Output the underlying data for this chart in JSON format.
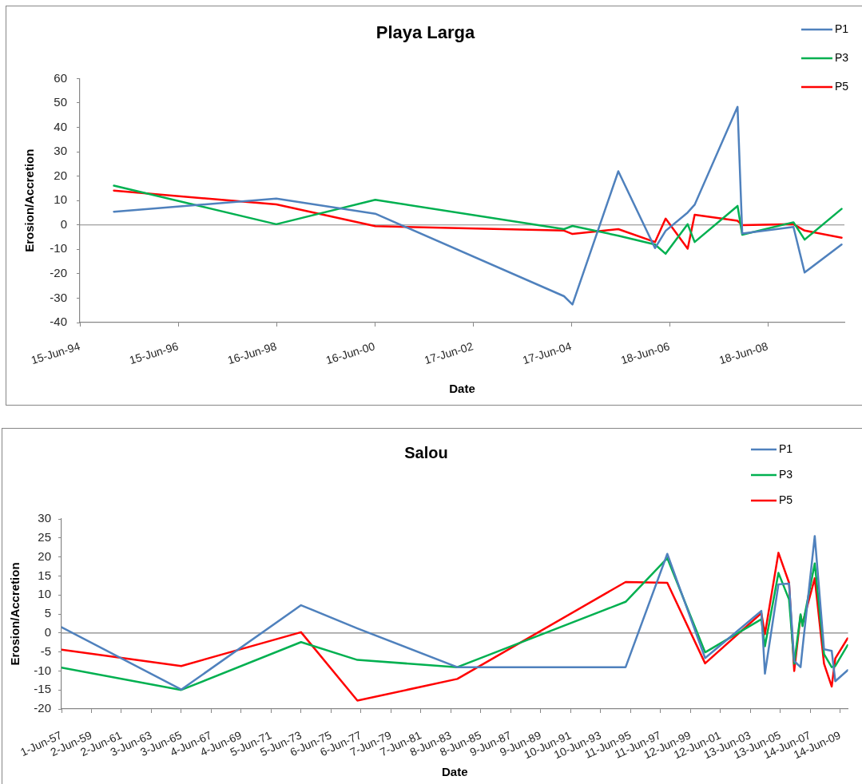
{
  "chart_data": [
    {
      "type": "line",
      "title": "Playa Larga",
      "xlabel": "Date",
      "ylabel": "Erosion/Accretion",
      "x": [
        "1995-02-23",
        "1998-06-15",
        "2000-06-20",
        "2004-04-24",
        "2004-06-26",
        "2005-06-02",
        "2006-03-02",
        "2006-05-20",
        "2006-10-31",
        "2006-12-22",
        "2007-11-06",
        "2007-12-11",
        "2008-12-26",
        "2009-03-19",
        "2009-12-19"
      ],
      "xlim": [
        "1994-06-15",
        "2010-01-09"
      ],
      "xticks": [
        {
          "value": "1994-06-15",
          "label": "15-Jun-94"
        },
        {
          "value": "1996-06-15",
          "label": "15-Jun-96"
        },
        {
          "value": "1998-06-16",
          "label": "16-Jun-98"
        },
        {
          "value": "2000-06-16",
          "label": "16-Jun-00"
        },
        {
          "value": "2002-06-17",
          "label": "17-Jun-02"
        },
        {
          "value": "2004-06-17",
          "label": "17-Jun-04"
        },
        {
          "value": "2006-06-18",
          "label": "18-Jun-06"
        },
        {
          "value": "2008-06-18",
          "label": "18-Jun-08"
        }
      ],
      "ylim": [
        -40,
        60
      ],
      "yticks": [
        -40,
        -30,
        -20,
        -10,
        0,
        10,
        20,
        30,
        40,
        50,
        60
      ],
      "series": [
        {
          "name": "P1",
          "color": "#4f81bd",
          "values": [
            5.4,
            10.8,
            4.6,
            -29.2,
            -32.6,
            22.0,
            -9.5,
            -2.4,
            5.1,
            8.3,
            48.4,
            -3.5,
            -0.8,
            -19.5,
            -8.0
          ]
        },
        {
          "name": "P3",
          "color": "#00b050",
          "values": [
            16.1,
            0.3,
            10.3,
            -1.7,
            -0.4,
            -4.4,
            -8.0,
            -11.8,
            0.3,
            -7.0,
            7.8,
            -4.0,
            1.1,
            -6.0,
            6.6
          ]
        },
        {
          "name": "P5",
          "color": "#ff0000",
          "values": [
            14.1,
            8.4,
            -0.5,
            -2.3,
            -3.7,
            -1.7,
            -7.0,
            2.6,
            -9.7,
            4.2,
            1.7,
            -0.1,
            0.3,
            -2.3,
            -5.2
          ]
        }
      ],
      "ref_lines": [
        {
          "axis": "y",
          "value": 0,
          "color": "#868686"
        }
      ],
      "grid": false,
      "legend": "top right",
      "marker": "none"
    },
    {
      "type": "line",
      "title": "Salou",
      "xlabel": "Date",
      "ylabel": "Erosion/Accretion",
      "x": [
        "1957-06-01",
        "1965-06-01",
        "1973-06-03",
        "1977-03-10",
        "1983-11-12",
        "1995-02-10",
        "1997-11-23",
        "2000-06-03",
        "2004-03-07",
        "2004-06-02",
        "2005-04-28",
        "2006-01-12",
        "2006-05-18",
        "2006-10-20",
        "2006-12-06",
        "2007-10-01",
        "2008-05-15",
        "2008-11-18",
        "2009-02-14",
        "2009-12-12"
      ],
      "xlim": [
        "1957-06-01",
        "2009-12-22"
      ],
      "xticks": [
        {
          "value": "1957-06-01",
          "label": "1-Jun-57"
        },
        {
          "value": "1959-06-02",
          "label": "2-Jun-59"
        },
        {
          "value": "1961-06-02",
          "label": "2-Jun-61"
        },
        {
          "value": "1963-06-03",
          "label": "3-Jun-63"
        },
        {
          "value": "1965-06-03",
          "label": "3-Jun-65"
        },
        {
          "value": "1967-06-04",
          "label": "4-Jun-67"
        },
        {
          "value": "1969-06-04",
          "label": "4-Jun-69"
        },
        {
          "value": "1971-06-05",
          "label": "5-Jun-71"
        },
        {
          "value": "1973-06-05",
          "label": "5-Jun-73"
        },
        {
          "value": "1975-06-06",
          "label": "6-Jun-75"
        },
        {
          "value": "1977-06-06",
          "label": "6-Jun-77"
        },
        {
          "value": "1979-06-07",
          "label": "7-Jun-79"
        },
        {
          "value": "1981-06-07",
          "label": "7-Jun-81"
        },
        {
          "value": "1983-06-08",
          "label": "8-Jun-83"
        },
        {
          "value": "1985-06-08",
          "label": "8-Jun-85"
        },
        {
          "value": "1987-06-09",
          "label": "9-Jun-87"
        },
        {
          "value": "1989-06-09",
          "label": "9-Jun-89"
        },
        {
          "value": "1991-06-10",
          "label": "10-Jun-91"
        },
        {
          "value": "1993-06-10",
          "label": "10-Jun-93"
        },
        {
          "value": "1995-06-11",
          "label": "11-Jun-95"
        },
        {
          "value": "1997-06-11",
          "label": "11-Jun-97"
        },
        {
          "value": "1999-06-12",
          "label": "12-Jun-99"
        },
        {
          "value": "2001-06-12",
          "label": "12-Jun-01"
        },
        {
          "value": "2003-06-13",
          "label": "13-Jun-03"
        },
        {
          "value": "2005-06-13",
          "label": "13-Jun-05"
        },
        {
          "value": "2007-06-14",
          "label": "14-Jun-07"
        },
        {
          "value": "2009-06-14",
          "label": "14-Jun-09"
        }
      ],
      "ylim": [
        -20,
        30
      ],
      "yticks": [
        -20,
        -15,
        -10,
        -5,
        0,
        5,
        10,
        15,
        20,
        25,
        30
      ],
      "series": [
        {
          "name": "P1",
          "color": "#4f81bd",
          "values": [
            1.5,
            -14.9,
            7.3,
            1.2,
            -9.0,
            -9.0,
            20.8,
            -6.6,
            5.8,
            -10.7,
            12.8,
            13.0,
            -7.4,
            -9.0,
            -4.1,
            25.5,
            -4.3,
            -4.7,
            -12.7,
            -9.8
          ]
        },
        {
          "name": "P3",
          "color": "#00b050",
          "values": [
            -9.1,
            -15.0,
            -2.4,
            -7.1,
            -9.0,
            8.2,
            19.7,
            -5.1,
            3.6,
            -3.5,
            15.8,
            8.8,
            -8.1,
            4.9,
            1.8,
            18.3,
            -5.6,
            -9.0,
            -8.7,
            -3.2
          ]
        },
        {
          "name": "P5",
          "color": "#ff0000",
          "values": [
            -4.4,
            -8.7,
            0.2,
            -17.8,
            -12.1,
            13.4,
            13.2,
            -8.0,
            5.2,
            -0.3,
            21.1,
            13.2,
            -10.0,
            4.6,
            2.4,
            14.4,
            -8.1,
            -14.1,
            -6.7,
            -1.4
          ]
        }
      ],
      "ref_lines": [
        {
          "axis": "y",
          "value": 0,
          "color": "#868686"
        }
      ],
      "grid": false,
      "legend": "top right",
      "marker": "none"
    }
  ]
}
